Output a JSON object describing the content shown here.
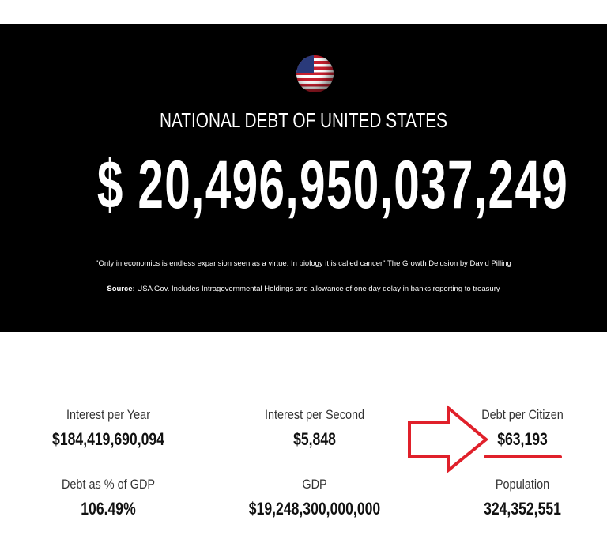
{
  "hero": {
    "flag_icon": "us-flag-icon",
    "title": "NATIONAL DEBT OF UNITED STATES",
    "debt": "$ 20,496,950,037,249",
    "quote": "\"Only in economics is endless expansion seen as a virtue. In biology it is called cancer\" The Growth Delusion by David Pilling",
    "source_label": "Source:",
    "source_text": " USA Gov. Includes Intragovernmental Holdings and allowance of one day delay in banks reporting to treasury"
  },
  "stats": [
    {
      "label": "Interest per Year",
      "value": "$184,419,690,094"
    },
    {
      "label": "Interest per Second",
      "value": "$5,848"
    },
    {
      "label": "Debt per Citizen",
      "value": "$63,193"
    },
    {
      "label": "Debt as % of GDP",
      "value": "106.49%"
    },
    {
      "label": "GDP",
      "value": "$19,248,300,000,000"
    },
    {
      "label": "Population",
      "value": "324,352,551"
    }
  ],
  "annotation": {
    "color": "#e0202a",
    "shape": "arrow-right-outline-with-underline"
  }
}
